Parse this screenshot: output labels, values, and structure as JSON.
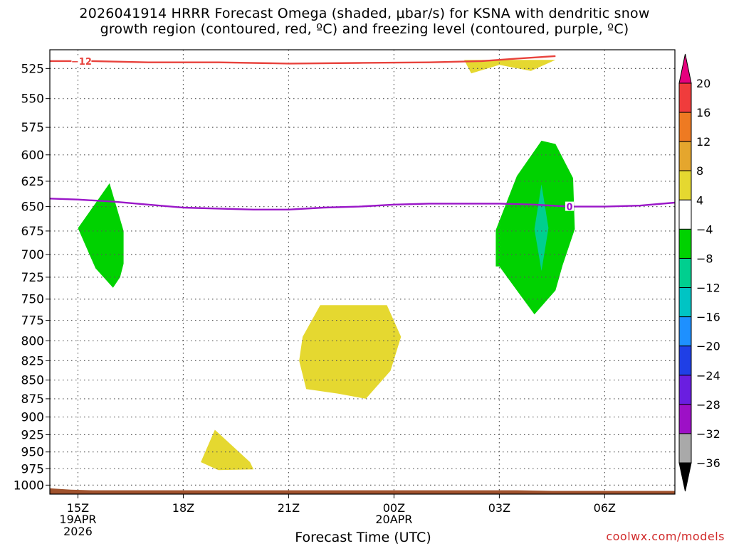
{
  "title": {
    "line1": "2026041914 HRRR Forecast Omega (shaded, μbar/s) for KSNA with dendritic snow",
    "line2": "growth region (contoured, red, ºC) and freezing level (contoured, purple, ºC)"
  },
  "credit": "coolwx.com/models",
  "colors": {
    "dgz_contour": "#e8423c",
    "freezing_contour": "#9a16c8",
    "terrain": "#a0522d"
  },
  "chart_data": {
    "type": "cross-section",
    "xlabel": "Forecast Time (UTC)",
    "ylabel": "",
    "y_scale": "log",
    "xlim": [
      14.2,
      32.0
    ],
    "ylim": [
      1014,
      510
    ],
    "x_ticks": [
      {
        "value": 15,
        "label": "15Z",
        "label2": "19APR",
        "label3": "2026"
      },
      {
        "value": 18,
        "label": "18Z",
        "label2": "",
        "label3": ""
      },
      {
        "value": 21,
        "label": "21Z",
        "label2": "",
        "label3": ""
      },
      {
        "value": 24,
        "label": "00Z",
        "label2": "20APR",
        "label3": ""
      },
      {
        "value": 27,
        "label": "03Z",
        "label2": "",
        "label3": ""
      },
      {
        "value": 30,
        "label": "06Z",
        "label2": "",
        "label3": ""
      }
    ],
    "y_ticks": [
      525,
      550,
      575,
      600,
      625,
      650,
      675,
      700,
      725,
      750,
      775,
      800,
      825,
      850,
      875,
      900,
      925,
      950,
      975,
      1000
    ],
    "grid": true,
    "colorbar": {
      "labels": [
        "20",
        "16",
        "12",
        "8",
        "4",
        "−4",
        "−8",
        "−12",
        "−16",
        "−20",
        "−24",
        "−28",
        "−32",
        "−36"
      ],
      "max_color": "#e6007e",
      "min_color": "#000000",
      "bins": [
        {
          "from": 16,
          "to": 20,
          "color": "#f03c3c"
        },
        {
          "from": 12,
          "to": 16,
          "color": "#ee7a22"
        },
        {
          "from": 8,
          "to": 12,
          "color": "#e5a62d"
        },
        {
          "from": 4,
          "to": 8,
          "color": "#e5d830"
        },
        {
          "from": -4,
          "to": 4,
          "color": "#ffffff"
        },
        {
          "from": -8,
          "to": -4,
          "color": "#00d200"
        },
        {
          "from": -12,
          "to": -8,
          "color": "#00cf8f"
        },
        {
          "from": -16,
          "to": -12,
          "color": "#00c4c4"
        },
        {
          "from": -20,
          "to": -16,
          "color": "#1e90ff"
        },
        {
          "from": -24,
          "to": -20,
          "color": "#1f3fe6"
        },
        {
          "from": -28,
          "to": -24,
          "color": "#6a1ee0"
        },
        {
          "from": -32,
          "to": -28,
          "color": "#9d10c6"
        },
        {
          "from": -36,
          "to": -32,
          "color": "#a9a9a9"
        }
      ]
    },
    "omega_regions": [
      {
        "level": -4,
        "color": "#00d200",
        "points": [
          [
            15.0,
            672
          ],
          [
            15.9,
            627
          ],
          [
            16.3,
            675
          ],
          [
            16.3,
            710
          ],
          [
            16.2,
            725
          ],
          [
            16.0,
            737
          ],
          [
            15.5,
            715
          ]
        ]
      },
      {
        "level": -4,
        "color": "#00d200",
        "points": [
          [
            26.9,
            674
          ],
          [
            27.5,
            620
          ],
          [
            28.2,
            587
          ],
          [
            28.6,
            590
          ],
          [
            29.1,
            622
          ],
          [
            29.15,
            673
          ],
          [
            28.8,
            712
          ],
          [
            28.6,
            740
          ],
          [
            28.0,
            768
          ],
          [
            27.5,
            740
          ],
          [
            27.0,
            713
          ],
          [
            26.9,
            713
          ]
        ]
      },
      {
        "level": -8,
        "color": "#00cf8f",
        "points": [
          [
            28.0,
            673
          ],
          [
            28.2,
            628
          ],
          [
            28.4,
            672
          ],
          [
            28.2,
            718
          ]
        ]
      },
      {
        "level": 4,
        "color": "#e5d830",
        "points": [
          [
            21.4,
            795
          ],
          [
            21.9,
            757
          ],
          [
            23.8,
            757
          ],
          [
            24.2,
            795
          ],
          [
            23.9,
            838
          ],
          [
            23.2,
            875
          ],
          [
            22.4,
            868
          ],
          [
            21.5,
            862
          ],
          [
            21.3,
            825
          ]
        ]
      },
      {
        "level": 4,
        "color": "#e5d830",
        "points": [
          [
            18.5,
            965
          ],
          [
            18.9,
            918
          ],
          [
            19.9,
            965
          ],
          [
            20.0,
            976
          ],
          [
            19.0,
            977
          ]
        ]
      },
      {
        "level": 4,
        "color": "#e5d830",
        "points": [
          [
            26.0,
            518
          ],
          [
            27.5,
            518
          ],
          [
            28.6,
            518
          ],
          [
            27.9,
            527
          ],
          [
            27.0,
            522
          ],
          [
            26.2,
            529
          ]
        ]
      }
    ],
    "dgz_contour": {
      "value": -12,
      "label": "−12",
      "points": [
        [
          14.2,
          519
        ],
        [
          15.4,
          519
        ],
        [
          17.0,
          520
        ],
        [
          19.0,
          520
        ],
        [
          21.0,
          521
        ],
        [
          23.0,
          520.5
        ],
        [
          25.0,
          520
        ],
        [
          26.5,
          519
        ],
        [
          27.5,
          517
        ],
        [
          28.6,
          515
        ]
      ]
    },
    "freezing_level": {
      "value": 0,
      "label": "0",
      "points": [
        [
          14.2,
          642
        ],
        [
          15.0,
          643
        ],
        [
          16.0,
          645
        ],
        [
          17.0,
          648
        ],
        [
          18.0,
          651
        ],
        [
          19.0,
          652
        ],
        [
          20.0,
          653
        ],
        [
          21.0,
          653
        ],
        [
          22.0,
          651
        ],
        [
          23.0,
          650
        ],
        [
          24.0,
          648
        ],
        [
          25.0,
          647
        ],
        [
          26.0,
          647
        ],
        [
          27.0,
          647
        ],
        [
          28.0,
          648
        ],
        [
          29.0,
          650
        ],
        [
          30.0,
          650
        ],
        [
          31.0,
          649
        ],
        [
          32.0,
          646
        ]
      ]
    },
    "terrain": {
      "points": [
        [
          14.2,
          1014
        ],
        [
          14.2,
          1005
        ],
        [
          14.8,
          1007
        ],
        [
          15.4,
          1008
        ],
        [
          16.5,
          1008
        ],
        [
          18.0,
          1008
        ],
        [
          20.0,
          1008
        ],
        [
          22.0,
          1008
        ],
        [
          24.0,
          1008
        ],
        [
          26.0,
          1008
        ],
        [
          27.5,
          1008
        ],
        [
          28.5,
          1009
        ],
        [
          30.0,
          1009
        ],
        [
          32.0,
          1009
        ],
        [
          32.0,
          1014
        ]
      ]
    }
  }
}
